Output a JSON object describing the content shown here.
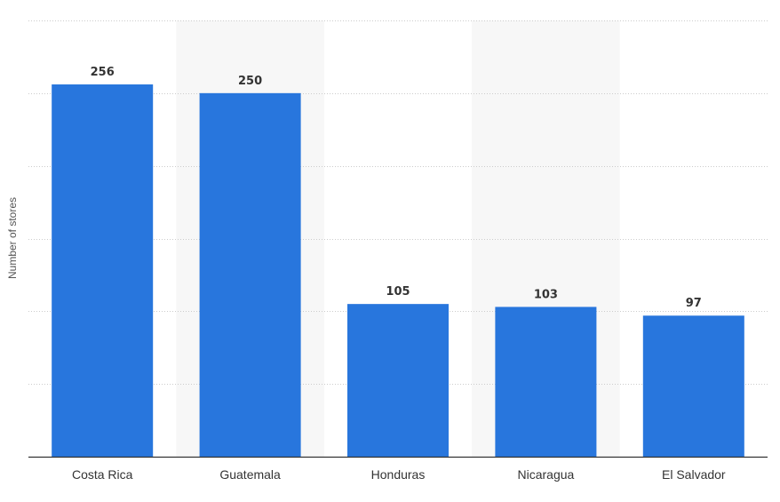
{
  "chart_data": {
    "type": "bar",
    "title": "",
    "xlabel": "",
    "ylabel": "Number of stores",
    "categories": [
      "Costa Rica",
      "Guatemala",
      "Honduras",
      "Nicaragua",
      "El Salvador"
    ],
    "values": [
      256,
      250,
      105,
      103,
      97
    ],
    "ylim": [
      0,
      300
    ],
    "grid": true,
    "grid_style": "dotted",
    "alternating_column_shading": true,
    "data_labels": true,
    "colors": {
      "bar": "#2876dd",
      "shade": "#f7f7f7",
      "grid": "#cccccc",
      "axis": "#333333"
    }
  }
}
